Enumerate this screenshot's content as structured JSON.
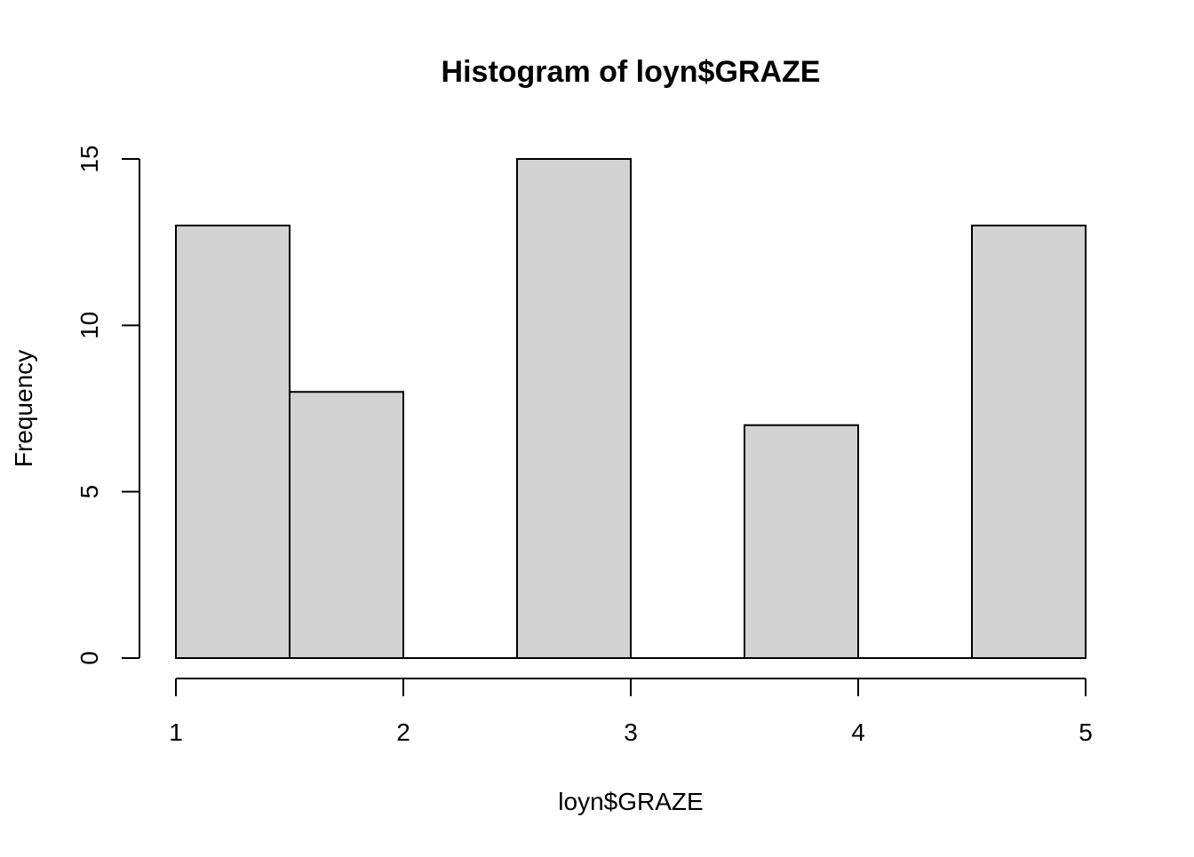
{
  "chart_data": {
    "type": "bar",
    "title": "Histogram of loyn$GRAZE",
    "xlabel": "loyn$GRAZE",
    "ylabel": "Frequency",
    "bins": [
      {
        "start": 1.0,
        "end": 1.5,
        "count": 13
      },
      {
        "start": 1.5,
        "end": 2.0,
        "count": 8
      },
      {
        "start": 2.0,
        "end": 2.5,
        "count": 0
      },
      {
        "start": 2.5,
        "end": 3.0,
        "count": 15
      },
      {
        "start": 3.0,
        "end": 3.5,
        "count": 0
      },
      {
        "start": 3.5,
        "end": 4.0,
        "count": 7
      },
      {
        "start": 4.0,
        "end": 4.5,
        "count": 0
      },
      {
        "start": 4.5,
        "end": 5.0,
        "count": 13
      }
    ],
    "xticks": [
      1,
      2,
      3,
      4,
      5
    ],
    "yticks": [
      0,
      5,
      10,
      15
    ],
    "xlim": [
      1,
      5
    ],
    "ylim": [
      0,
      15
    ],
    "grid": false,
    "bar_color": "#d3d3d3",
    "edge_color": "#000000"
  }
}
